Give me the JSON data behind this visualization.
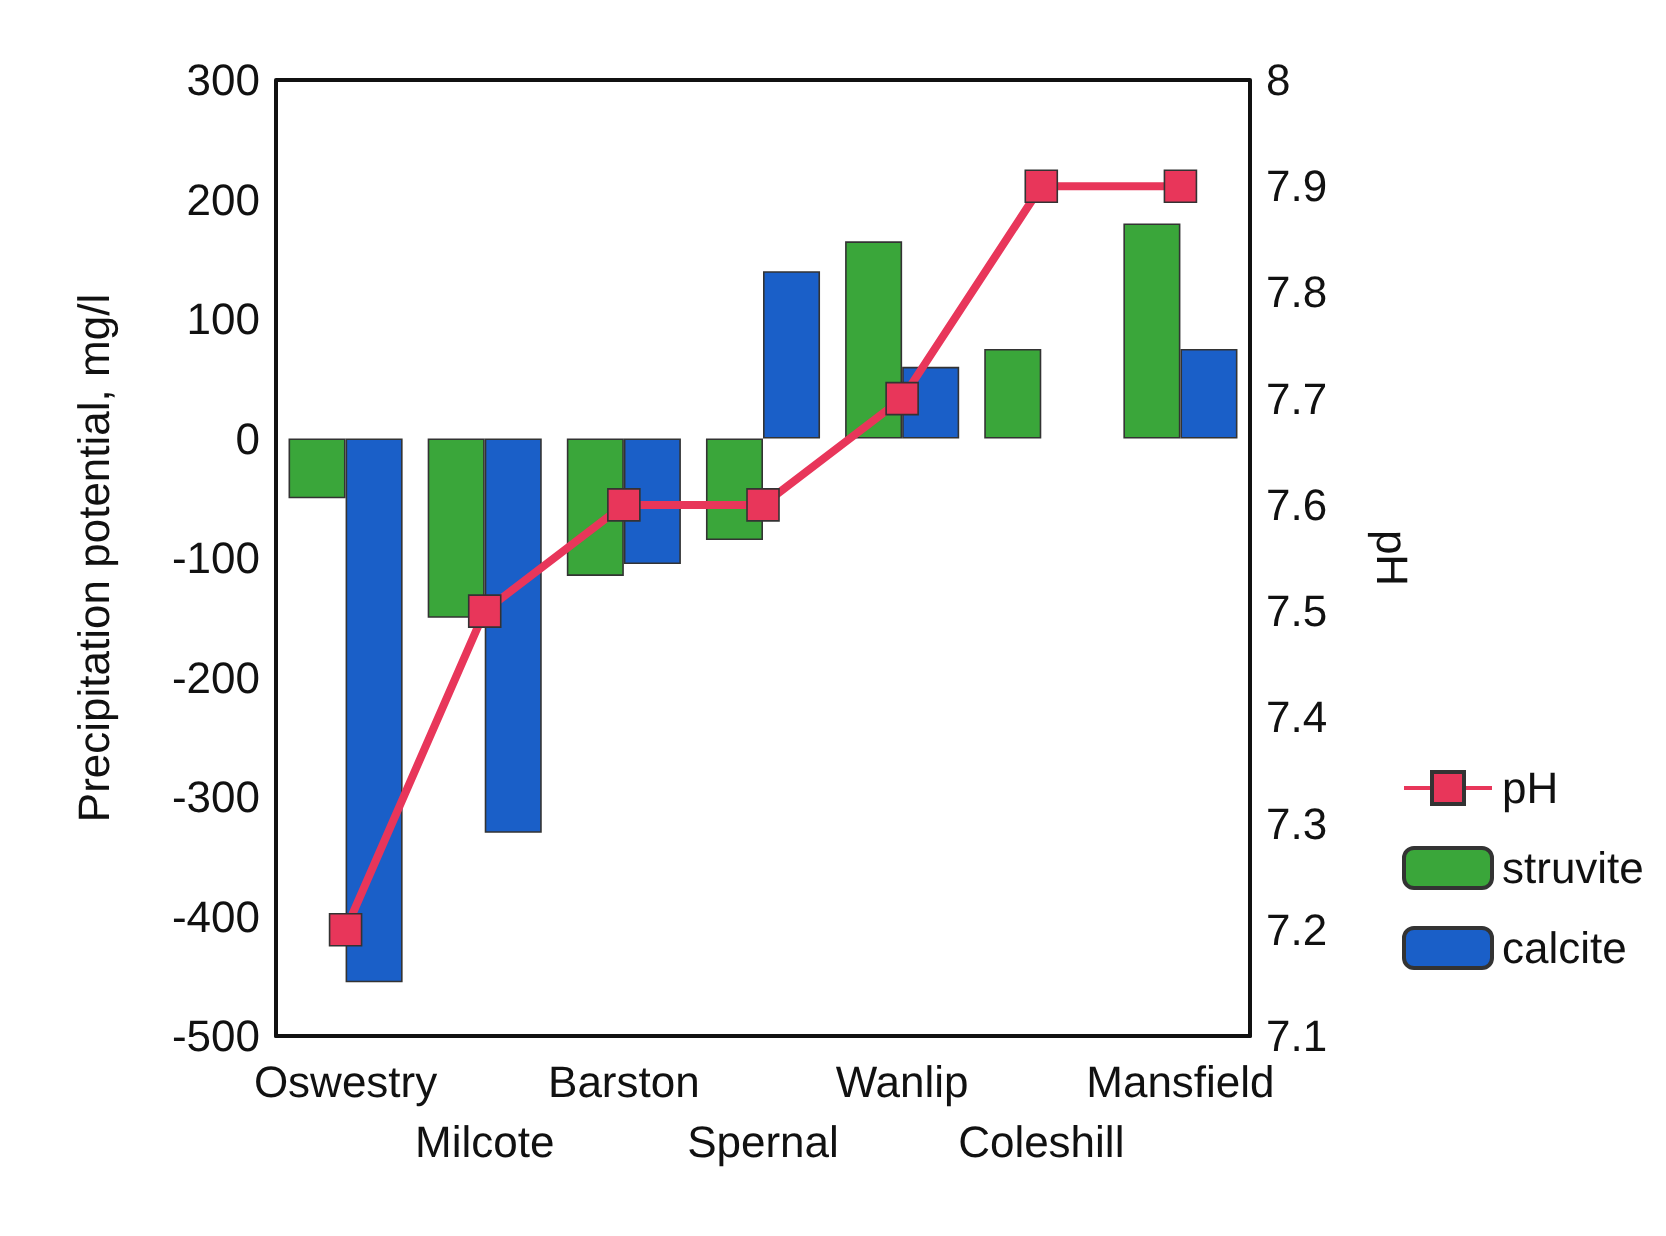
{
  "chart_data": {
    "type": "bar",
    "ylabel": "Precipitation potential, mg/l",
    "y2label": "pH",
    "categories": [
      "Oswestry",
      "Milcote",
      "Barston",
      "Spernal",
      "Wanlip",
      "Coleshill",
      "Mansfield"
    ],
    "series": [
      {
        "name": "pH",
        "type": "line",
        "axis": "y2",
        "color": "#e8365a",
        "marker": "square",
        "values": [
          7.2,
          7.5,
          7.6,
          7.6,
          7.7,
          7.9,
          7.9
        ]
      },
      {
        "name": "struvite",
        "color": "#3aa63a",
        "values": [
          -50,
          -150,
          -115,
          -85,
          165,
          75,
          180
        ]
      },
      {
        "name": "calcite",
        "color": "#1a5fc8",
        "values": [
          -455,
          -330,
          -105,
          140,
          60,
          null,
          75
        ]
      }
    ],
    "ylim": [
      -500,
      300
    ],
    "yticks": [
      -500,
      -400,
      -300,
      -200,
      -100,
      0,
      100,
      200,
      300
    ],
    "y2lim": [
      7.1,
      8
    ],
    "y2ticks": [
      7.1,
      7.2,
      7.3,
      7.4,
      7.5,
      7.6,
      7.7,
      7.8,
      7.9,
      8
    ],
    "grid": false,
    "legend": "right"
  }
}
